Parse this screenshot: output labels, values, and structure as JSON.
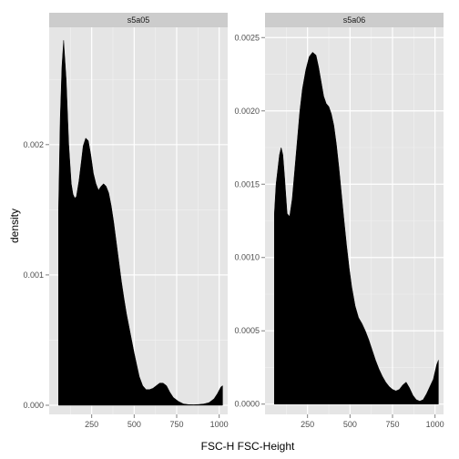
{
  "chart_data": {
    "type": "area",
    "xlabel": "FSC-H FSC-Height",
    "ylabel": "density",
    "grid": true,
    "fill_color": "#000000",
    "panel_bg": "#e5e5e5",
    "strip_bg": "#cccccc",
    "grid_major_color": "#ffffff",
    "grid_minor_color": "#f2f2f2",
    "panels": [
      {
        "strip": "s5a05",
        "xlim": [
          0,
          1050
        ],
        "ylim": [
          -7e-05,
          0.0029
        ],
        "xticks": [
          250,
          500,
          750,
          1000
        ],
        "xtick_labels": [
          "250",
          "500",
          "750",
          "1000"
        ],
        "yticks": [
          0,
          0.001,
          0.002
        ],
        "ytick_labels": [
          "0.000",
          "0.001",
          "0.002"
        ],
        "series": [
          {
            "x": [
              55,
              65,
              75,
              85,
              100,
              115,
              130,
              140,
              150,
              160,
              175,
              190,
              200,
              215,
              230,
              245,
              260,
              275,
              290,
              305,
              320,
              335,
              350,
              365,
              380,
              395,
              410,
              425,
              440,
              455,
              470,
              485,
              500,
              515,
              530,
              550,
              570,
              590,
              610,
              630,
              650,
              670,
              690,
              710,
              730,
              760,
              790,
              820,
              850,
              880,
              910,
              940,
              970,
              990,
              1010,
              1020
            ],
            "y": [
              0.0015,
              0.0022,
              0.0026,
              0.0028,
              0.0025,
              0.002,
              0.0017,
              0.00162,
              0.00159,
              0.0016,
              0.00172,
              0.00188,
              0.00199,
              0.00205,
              0.00203,
              0.00192,
              0.00178,
              0.0017,
              0.00165,
              0.00168,
              0.0017,
              0.00168,
              0.00163,
              0.00153,
              0.0014,
              0.00125,
              0.0011,
              0.00095,
              0.00082,
              0.0007,
              0.0006,
              0.0005,
              0.0004,
              0.00031,
              0.00022,
              0.00015,
              0.00012,
              0.00012,
              0.00013,
              0.00015,
              0.00017,
              0.00017,
              0.00015,
              0.0001,
              6e-05,
              3e-05,
              1e-05,
              5e-06,
              4e-06,
              6e-06,
              1e-05,
              2e-05,
              5e-05,
              9e-05,
              0.00014,
              0.00015
            ]
          }
        ]
      },
      {
        "strip": "s5a06",
        "xlim": [
          0,
          1050
        ],
        "ylim": [
          -7e-05,
          0.00257
        ],
        "xticks": [
          250,
          500,
          750,
          1000
        ],
        "xtick_labels": [
          "250",
          "500",
          "750",
          "1000"
        ],
        "yticks": [
          0,
          0.0005,
          0.001,
          0.0015,
          0.002,
          0.0025
        ],
        "ytick_labels": [
          "0.0000",
          "0.0005",
          "0.0010",
          "0.0015",
          "0.0020",
          "0.0025"
        ],
        "series": [
          {
            "x": [
              55,
              65,
              75,
              85,
              95,
              105,
              115,
              130,
              145,
              160,
              175,
              190,
              205,
              220,
              240,
              260,
              280,
              300,
              315,
              330,
              345,
              360,
              375,
              390,
              405,
              420,
              435,
              450,
              465,
              480,
              495,
              510,
              530,
              550,
              570,
              590,
              610,
              630,
              650,
              670,
              690,
              710,
              730,
              750,
              770,
              790,
              810,
              830,
              850,
              870,
              890,
              910,
              930,
              950,
              970,
              990,
              1010,
              1020
            ],
            "y": [
              0.0013,
              0.0015,
              0.0016,
              0.0017,
              0.00175,
              0.0017,
              0.00155,
              0.0013,
              0.00128,
              0.0014,
              0.0016,
              0.0018,
              0.002,
              0.00215,
              0.00228,
              0.00237,
              0.0024,
              0.00238,
              0.0023,
              0.0022,
              0.0021,
              0.00205,
              0.00203,
              0.00198,
              0.0019,
              0.00177,
              0.00161,
              0.00143,
              0.00125,
              0.00108,
              0.00093,
              0.0008,
              0.00067,
              0.00059,
              0.00055,
              0.0005,
              0.00044,
              0.00037,
              0.0003,
              0.00024,
              0.00019,
              0.00015,
              0.00012,
              0.0001,
              9e-05,
              0.0001,
              0.00013,
              0.00015,
              0.00011,
              6e-05,
              3e-05,
              2e-05,
              3e-05,
              7e-05,
              0.00012,
              0.00017,
              0.00027,
              0.0003
            ]
          }
        ]
      }
    ]
  }
}
